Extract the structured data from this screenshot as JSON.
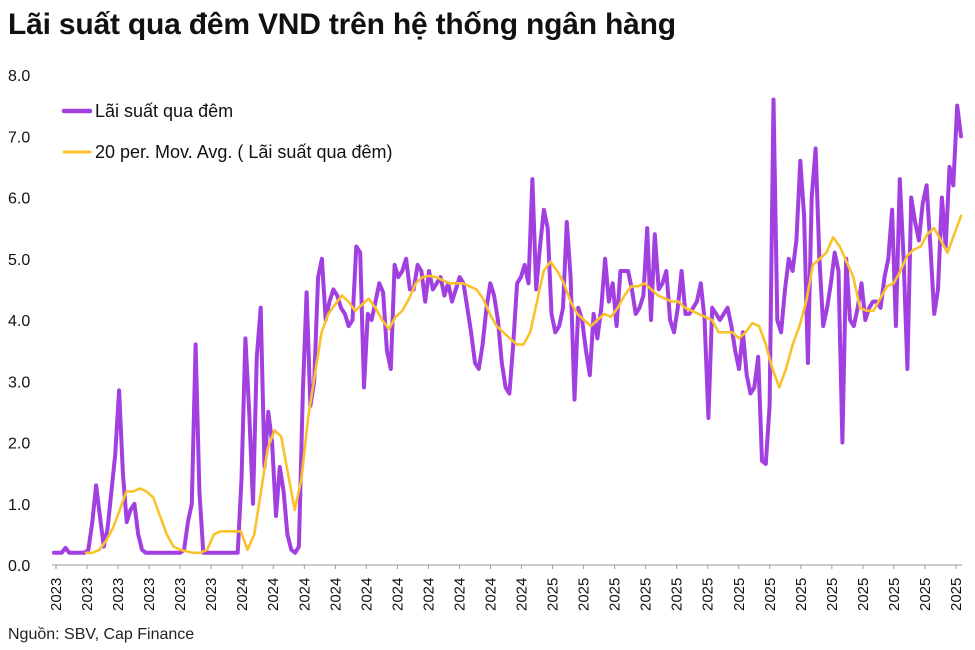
{
  "title": "Lãi suất qua đêm VND trên hệ thống ngân hàng",
  "source": "Nguồn: SBV, Cap Finance",
  "colors": {
    "series_1": "#A23FE0",
    "series_2": "#F8C22C",
    "axis": "#999999"
  },
  "chart_data": {
    "type": "line",
    "ylim": [
      0,
      8
    ],
    "yticks": [
      "0.0",
      "1.0",
      "2.0",
      "3.0",
      "4.0",
      "5.0",
      "6.0",
      "7.0",
      "8.0"
    ],
    "xticks": [
      "2023",
      "2023",
      "2023",
      "2023",
      "2023",
      "2023",
      "2024",
      "2024",
      "2024",
      "2024",
      "2024",
      "2024",
      "2024",
      "2024",
      "2024",
      "2024",
      "2025",
      "2025",
      "2025",
      "2025",
      "2025",
      "2025",
      "2025",
      "2025",
      "2025",
      "2025",
      "2025",
      "2025",
      "2025",
      "2025"
    ],
    "legend_position": "top-left",
    "series": [
      {
        "name": "Lãi suất qua đêm",
        "values": [
          0.2,
          0.2,
          0.2,
          0.28,
          0.2,
          0.2,
          0.2,
          0.2,
          0.2,
          0.25,
          0.7,
          1.3,
          0.8,
          0.3,
          0.6,
          1.2,
          1.8,
          2.85,
          1.5,
          0.7,
          0.9,
          1.0,
          0.5,
          0.25,
          0.2,
          0.2,
          0.2,
          0.2,
          0.2,
          0.2,
          0.2,
          0.2,
          0.2,
          0.2,
          0.25,
          0.7,
          1.0,
          3.6,
          1.2,
          0.2,
          0.2,
          0.2,
          0.2,
          0.2,
          0.2,
          0.2,
          0.2,
          0.2,
          0.2,
          1.4,
          3.7,
          2.5,
          1.0,
          3.4,
          4.2,
          1.6,
          2.5,
          2.0,
          0.8,
          1.6,
          1.2,
          0.5,
          0.25,
          0.2,
          0.3,
          2.8,
          4.45,
          2.6,
          3.0,
          4.7,
          5.0,
          4.0,
          4.3,
          4.5,
          4.4,
          4.2,
          4.1,
          3.9,
          4.0,
          5.2,
          5.1,
          2.9,
          4.1,
          4.0,
          4.3,
          4.6,
          4.45,
          3.5,
          3.2,
          4.9,
          4.7,
          4.8,
          5.0,
          4.5,
          4.5,
          4.9,
          4.8,
          4.3,
          4.8,
          4.5,
          4.6,
          4.7,
          4.4,
          4.6,
          4.3,
          4.5,
          4.7,
          4.6,
          4.2,
          3.8,
          3.3,
          3.2,
          3.6,
          4.2,
          4.6,
          4.4,
          4.0,
          3.3,
          2.9,
          2.8,
          3.6,
          4.6,
          4.7,
          4.9,
          4.6,
          6.3,
          4.5,
          5.2,
          5.8,
          5.5,
          4.1,
          3.8,
          3.9,
          4.2,
          5.6,
          4.7,
          2.7,
          4.2,
          4.0,
          3.5,
          3.1,
          4.1,
          3.7,
          4.2,
          5.0,
          4.3,
          4.6,
          3.9,
          4.8,
          4.8,
          4.8,
          4.5,
          4.1,
          4.2,
          4.4,
          5.5,
          4.0,
          5.4,
          4.5,
          4.6,
          4.8,
          4.0,
          3.8,
          4.2,
          4.8,
          4.1,
          4.1,
          4.2,
          4.3,
          4.6,
          4.0,
          2.4,
          4.2,
          4.1,
          4.0,
          4.1,
          4.2,
          3.9,
          3.5,
          3.2,
          3.8,
          3.1,
          2.8,
          2.9,
          3.4,
          1.7,
          1.65,
          2.6,
          7.6,
          4.0,
          3.8,
          4.5,
          5.0,
          4.8,
          5.3,
          6.6,
          5.7,
          3.3,
          6.0,
          6.8,
          5.0,
          3.9,
          4.2,
          4.6,
          5.1,
          4.8,
          2.0,
          5.0,
          4.0,
          3.9,
          4.2,
          4.6,
          4.0,
          4.2,
          4.3,
          4.3,
          4.2,
          4.7,
          5.0,
          5.8,
          3.9,
          6.3,
          5.0,
          3.2,
          6.0,
          5.6,
          5.3,
          5.9,
          6.2,
          5.2,
          4.1,
          4.5,
          6.0,
          5.2,
          6.5,
          6.2,
          7.5,
          7.0
        ]
      },
      {
        "name": "20 per. Mov. Avg. ( Lãi suất qua đêm)",
        "values": [
          0.2,
          0.2,
          0.25,
          0.4,
          0.6,
          0.9,
          1.2,
          1.2,
          1.25,
          1.2,
          1.1,
          0.8,
          0.5,
          0.3,
          0.25,
          0.22,
          0.2,
          0.2,
          0.25,
          0.5,
          0.55,
          0.55,
          0.55,
          0.55,
          0.25,
          0.5,
          1.2,
          1.9,
          2.2,
          2.1,
          1.5,
          0.9,
          1.4,
          2.4,
          3.1,
          3.8,
          4.1,
          4.25,
          4.4,
          4.3,
          4.15,
          4.25,
          4.35,
          4.2,
          4.0,
          3.85,
          4.05,
          4.15,
          4.35,
          4.6,
          4.7,
          4.72,
          4.7,
          4.65,
          4.6,
          4.6,
          4.6,
          4.55,
          4.5,
          4.35,
          4.1,
          3.9,
          3.8,
          3.7,
          3.6,
          3.6,
          3.8,
          4.3,
          4.8,
          4.95,
          4.8,
          4.6,
          4.3,
          4.1,
          4.0,
          3.9,
          4.0,
          4.1,
          4.05,
          4.2,
          4.4,
          4.55,
          4.55,
          4.6,
          4.5,
          4.4,
          4.35,
          4.3,
          4.3,
          4.2,
          4.15,
          4.1,
          4.05,
          4.0,
          3.8,
          3.8,
          3.8,
          3.7,
          3.8,
          3.95,
          3.9,
          3.6,
          3.2,
          2.9,
          3.2,
          3.6,
          3.9,
          4.3,
          4.9,
          5.0,
          5.1,
          5.35,
          5.2,
          4.95,
          4.7,
          4.2,
          4.15,
          4.15,
          4.35,
          4.55,
          4.6,
          4.8,
          5.05,
          5.15,
          5.2,
          5.4,
          5.5,
          5.3,
          5.1,
          5.4,
          5.7
        ]
      }
    ]
  }
}
